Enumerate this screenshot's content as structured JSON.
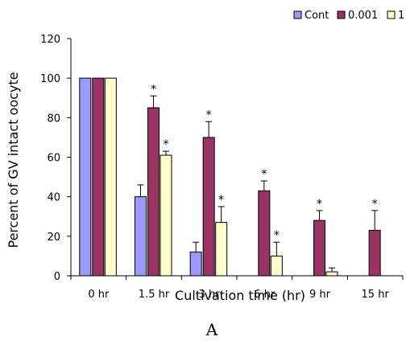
{
  "chart_data": {
    "type": "bar",
    "xlabel": "Cultivation time (hr)",
    "ylabel": "Percent of GV intact oocyte",
    "ylim": [
      0,
      120
    ],
    "yticks": [
      0,
      20,
      40,
      60,
      80,
      100,
      120
    ],
    "categories": [
      "0 hr",
      "1.5 hr",
      "3 hr",
      "6 hr",
      "9 hr",
      "15 hr"
    ],
    "legend_position": "top-right",
    "grid": false,
    "series": [
      {
        "name": "Cont",
        "color": "#9999ff",
        "values": [
          100,
          40,
          12,
          0,
          0,
          0
        ],
        "errors": [
          0,
          6,
          5,
          0,
          0,
          0
        ],
        "significant": [
          false,
          false,
          false,
          false,
          false,
          false
        ]
      },
      {
        "name": "0.001",
        "color": "#993366",
        "values": [
          100,
          85,
          70,
          43,
          28,
          23
        ],
        "errors": [
          0,
          6,
          8,
          5,
          5,
          10
        ],
        "significant": [
          false,
          true,
          true,
          true,
          true,
          true
        ]
      },
      {
        "name": "1",
        "color": "#ffffcc",
        "values": [
          100,
          61,
          27,
          10,
          2,
          0
        ],
        "errors": [
          0,
          2,
          8,
          7,
          2,
          0
        ],
        "significant": [
          false,
          true,
          true,
          true,
          false,
          false
        ]
      }
    ],
    "significance_marker": "*",
    "panel_label": "A"
  }
}
